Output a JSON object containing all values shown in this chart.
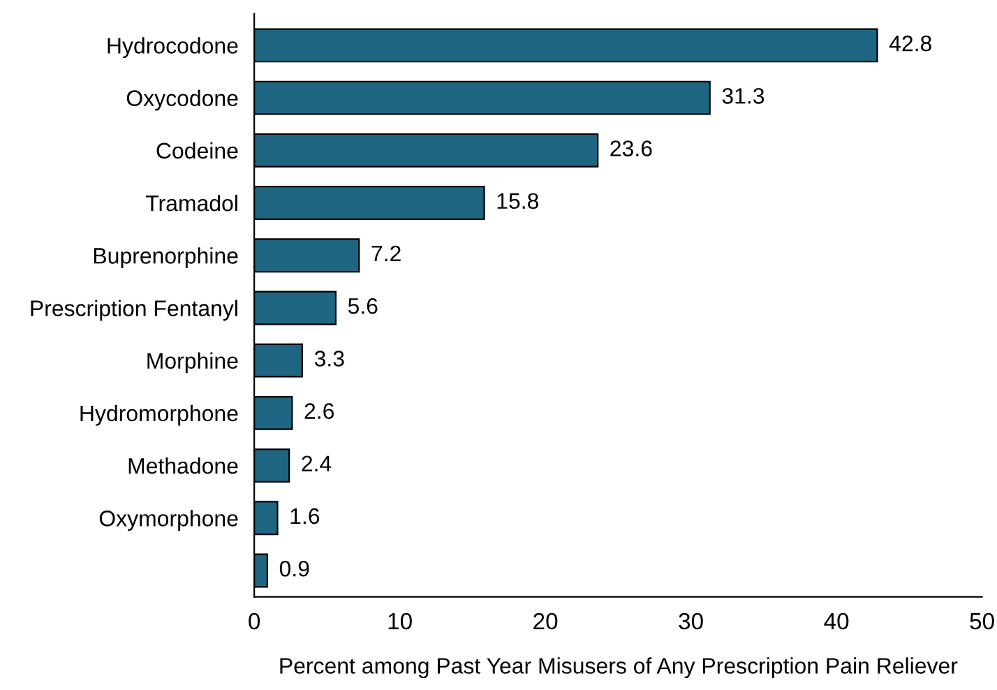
{
  "chart_data": {
    "type": "bar",
    "orientation": "horizontal",
    "xlabel": "Percent among Past Year Misusers of Any Prescription Pain Reliever",
    "categories": [
      "Hydrocodone",
      "Oxycodone",
      "Codeine",
      "Tramadol",
      "Buprenorphine",
      "Prescription Fentanyl",
      "Morphine",
      "Hydromorphone",
      "Methadone",
      "Oxymorphone",
      null
    ],
    "values": [
      42.8,
      31.3,
      23.6,
      15.8,
      7.2,
      5.6,
      3.3,
      2.6,
      2.4,
      1.6,
      0.9
    ],
    "color": "#1f6682",
    "xlim": [
      0,
      50
    ],
    "xticks": [
      0,
      10,
      20,
      30,
      40,
      50
    ],
    "data_labels": true,
    "grid": false
  }
}
